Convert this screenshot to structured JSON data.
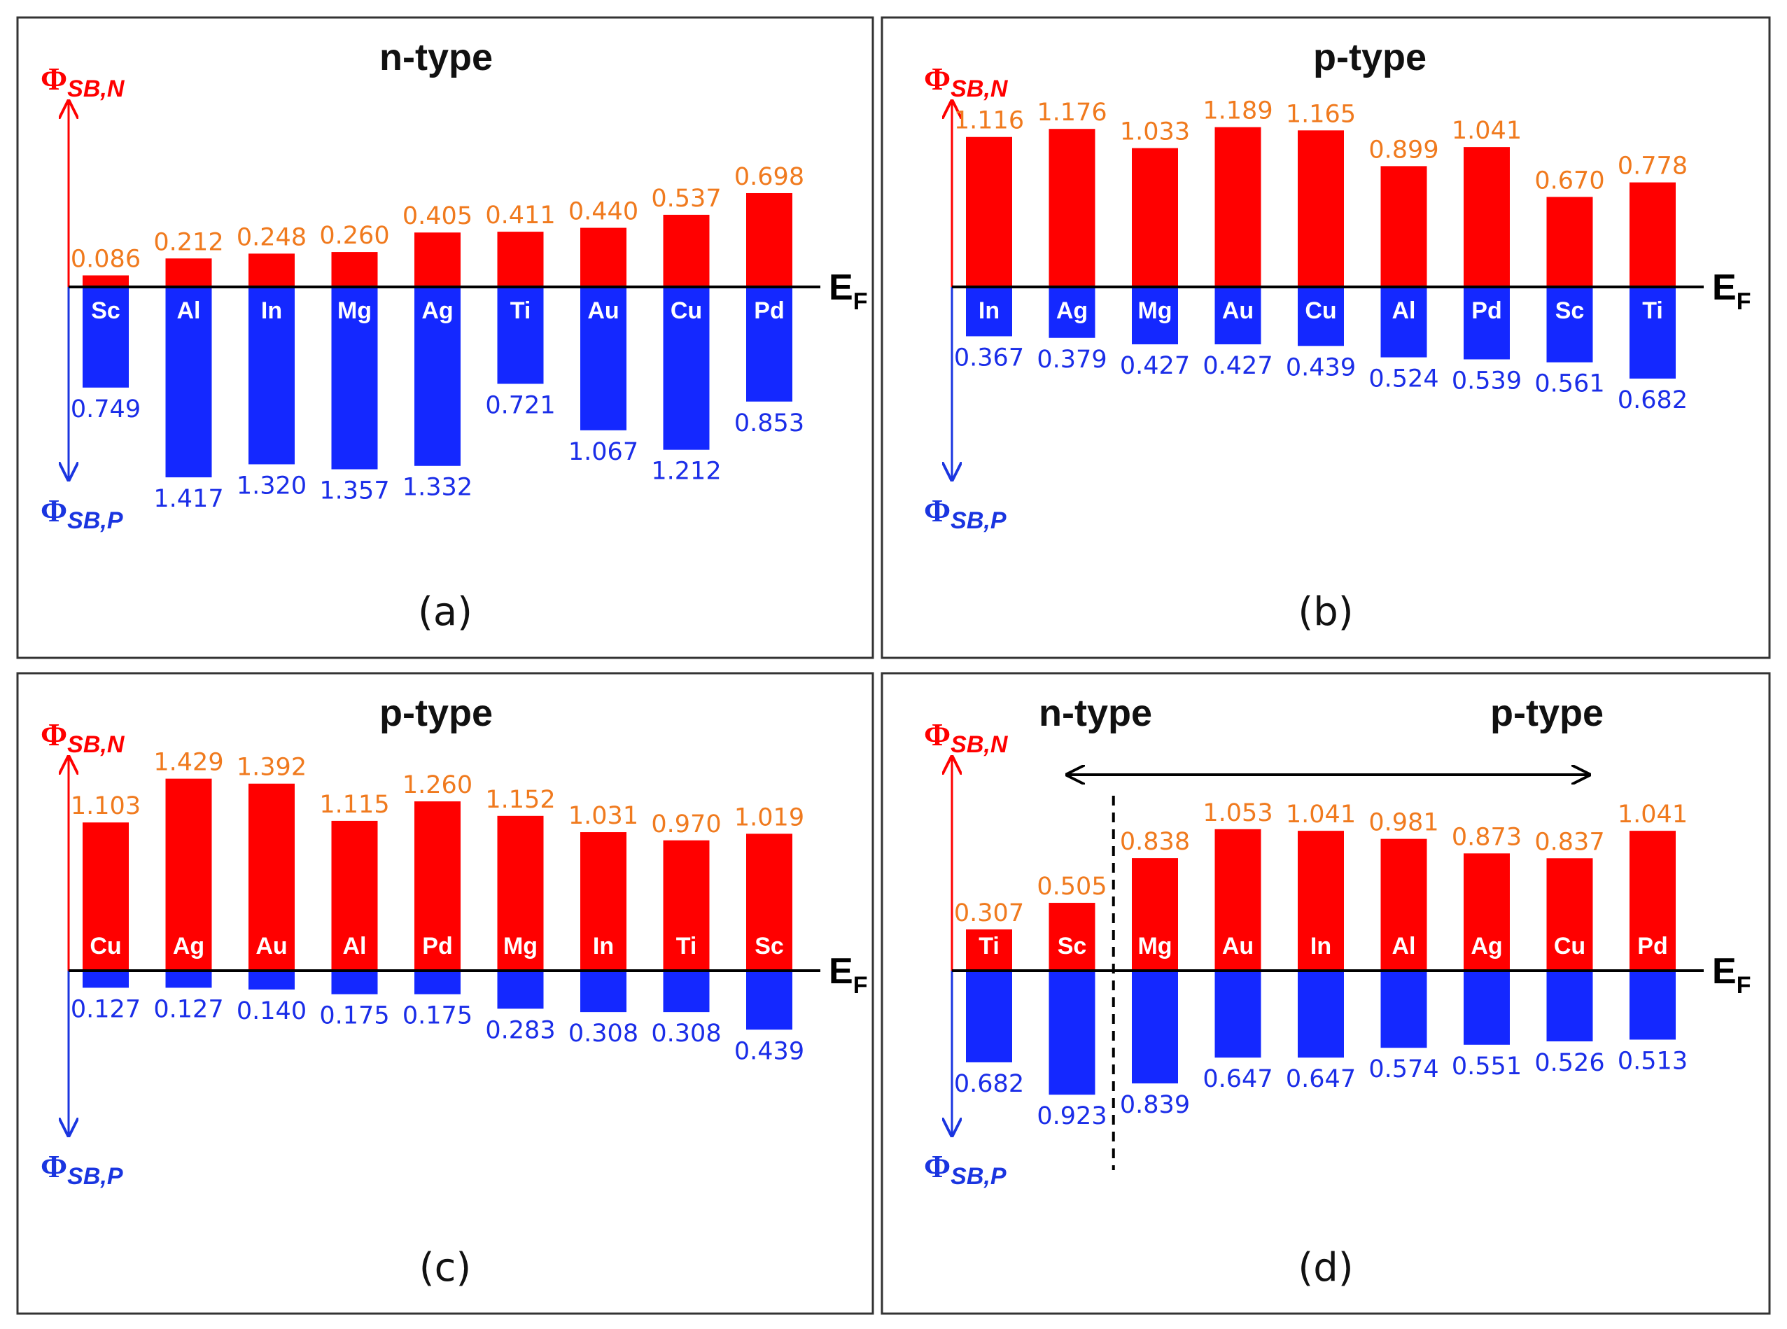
{
  "colors": {
    "n_bar": "#ff0000",
    "p_bar": "#1428ff",
    "n_value_text": "#f07a1e",
    "p_value_text": "#1a2de8",
    "n_axis": "#ff0000",
    "p_axis": "#1a35e0"
  },
  "labels": {
    "phi_symbol": "Φ",
    "phi_n_sub": "SB,N",
    "phi_p_sub": "SB,P",
    "ef_main": "E",
    "ef_sub": "F"
  },
  "chart_data": [
    {
      "type": "bar",
      "panel": "(a)",
      "titles": [
        "n-type"
      ],
      "categories": [
        "Sc",
        "Al",
        "In",
        "Mg",
        "Ag",
        "Ti",
        "Au",
        "Cu",
        "Pd"
      ],
      "series": [
        {
          "name": "ΦSB,N",
          "values": [
            0.086,
            0.212,
            0.248,
            0.26,
            0.405,
            0.411,
            0.44,
            0.537,
            0.698
          ],
          "labels": [
            "0.086",
            "0.212",
            "0.248",
            "0.260",
            "0.405",
            "0.411",
            "0.440",
            "0.537",
            "0.698"
          ]
        },
        {
          "name": "ΦSB,P",
          "values": [
            0.749,
            1.417,
            1.32,
            1.357,
            1.332,
            0.721,
            1.067,
            1.212,
            0.853
          ],
          "labels": [
            "0.749",
            "1.417",
            "1.320",
            "1.357",
            "1.332",
            "0.721",
            "1.067",
            "1.212",
            "0.853"
          ]
        }
      ]
    },
    {
      "type": "bar",
      "panel": "(b)",
      "titles": [
        "p-type"
      ],
      "categories": [
        "In",
        "Ag",
        "Mg",
        "Au",
        "Cu",
        "Al",
        "Pd",
        "Sc",
        "Ti"
      ],
      "series": [
        {
          "name": "ΦSB,N",
          "values": [
            1.116,
            1.176,
            1.033,
            1.189,
            1.165,
            0.899,
            1.041,
            0.67,
            0.778
          ],
          "labels": [
            "1.116",
            "1.176",
            "1.033",
            "1.189",
            "1.165",
            "0.899",
            "1.041",
            "0.670",
            "0.778"
          ]
        },
        {
          "name": "ΦSB,P",
          "values": [
            0.367,
            0.379,
            0.427,
            0.427,
            0.439,
            0.524,
            0.539,
            0.561,
            0.682
          ],
          "labels": [
            "0.367",
            "0.379",
            "0.427",
            "0.427",
            "0.439",
            "0.524",
            "0.539",
            "0.561",
            "0.682"
          ]
        }
      ]
    },
    {
      "type": "bar",
      "panel": "(c)",
      "titles": [
        "p-type"
      ],
      "categories": [
        "Cu",
        "Ag",
        "Au",
        "Al",
        "Pd",
        "Mg",
        "In",
        "Ti",
        "Sc"
      ],
      "series": [
        {
          "name": "ΦSB,N",
          "values": [
            1.103,
            1.429,
            1.392,
            1.115,
            1.26,
            1.152,
            1.031,
            0.97,
            1.019
          ],
          "labels": [
            "1.103",
            "1.429",
            "1.392",
            "1.115",
            "1.260",
            "1.152",
            "1.031",
            "0.970",
            "1.019"
          ]
        },
        {
          "name": "ΦSB,P",
          "values": [
            0.127,
            0.127,
            0.14,
            0.175,
            0.175,
            0.283,
            0.308,
            0.308,
            0.439
          ],
          "labels": [
            "0.127",
            "0.127",
            "0.140",
            "0.175",
            "0.175",
            "0.283",
            "0.308",
            "0.308",
            "0.439"
          ]
        }
      ]
    },
    {
      "type": "bar",
      "panel": "(d)",
      "titles": [
        "n-type",
        "p-type"
      ],
      "categories": [
        "Ti",
        "Sc",
        "Mg",
        "Au",
        "In",
        "Al",
        "Ag",
        "Cu",
        "Pd"
      ],
      "series": [
        {
          "name": "ΦSB,N",
          "values": [
            0.307,
            0.505,
            0.838,
            1.053,
            1.041,
            0.981,
            0.873,
            0.837,
            1.041
          ],
          "labels": [
            "0.307",
            "0.505",
            "0.838",
            "1.053",
            "1.041",
            "0.981",
            "0.873",
            "0.837",
            "1.041"
          ]
        },
        {
          "name": "ΦSB,P",
          "values": [
            0.682,
            0.923,
            0.839,
            0.647,
            0.647,
            0.574,
            0.551,
            0.526,
            0.513
          ],
          "labels": [
            "0.682",
            "0.923",
            "0.839",
            "0.647",
            "0.647",
            "0.574",
            "0.551",
            "0.526",
            "0.513"
          ]
        }
      ]
    }
  ]
}
